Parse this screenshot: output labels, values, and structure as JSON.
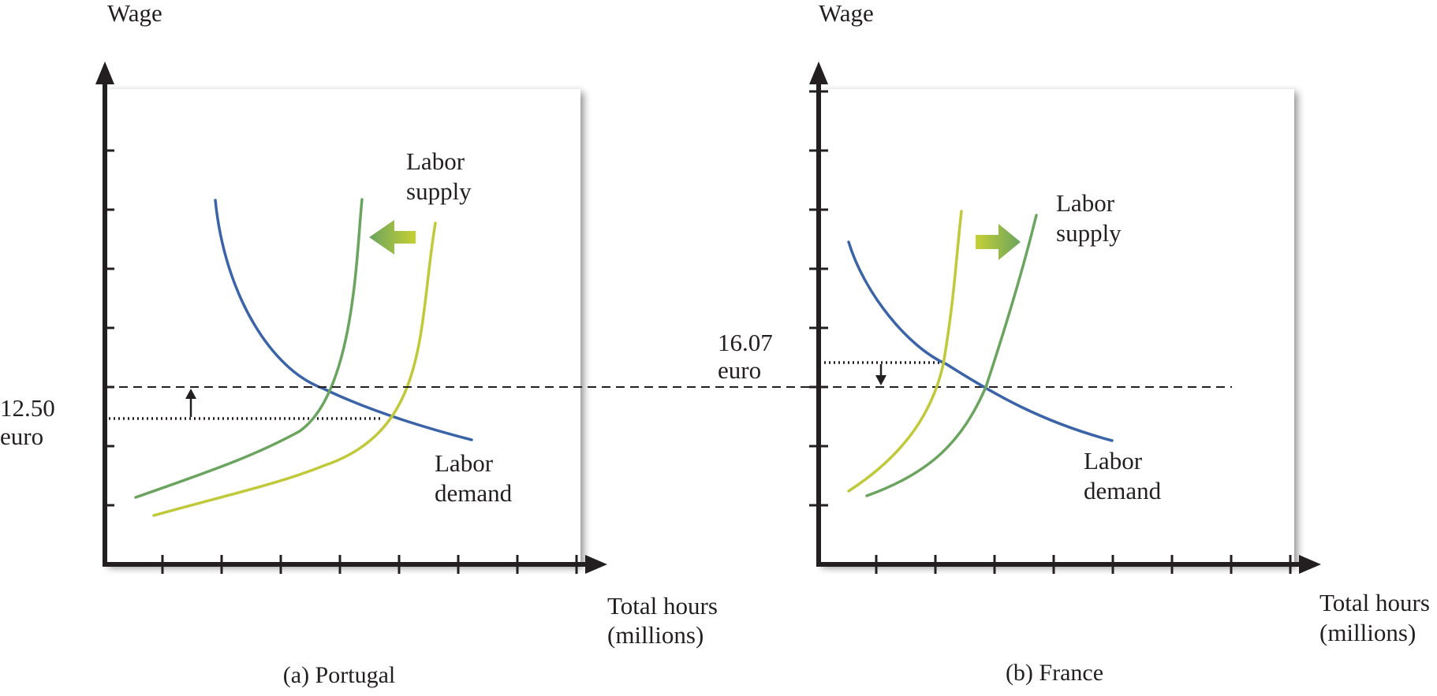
{
  "colors": {
    "axis": "#231f20",
    "labor_demand": "#3b64a8",
    "labor_supply_green": "#6aa45f",
    "labor_supply_yellow": "#bfc93a",
    "shift_arrow_from": "#6aa45f",
    "shift_arrow_to": "#c6d033"
  },
  "panels": [
    {
      "id": "portugal",
      "caption": "(a) Portugal",
      "y_axis_label": "Wage",
      "x_axis_label_line1": "Total hours",
      "x_axis_label_line2": "(millions)",
      "supply_label_line1": "Labor",
      "supply_label_line2": "supply",
      "demand_label_line1": "Labor",
      "demand_label_line2": "demand",
      "wage_label_line1": "12.50",
      "wage_label_line2": "euro",
      "supply_shift_direction": "left",
      "wage_change_direction": "up",
      "curves": [
        {
          "name": "Labor demand",
          "color_key": "labor_demand"
        },
        {
          "name": "Labor supply (new)",
          "color_key": "labor_supply_green"
        },
        {
          "name": "Labor supply (original)",
          "color_key": "labor_supply_yellow"
        }
      ]
    },
    {
      "id": "france",
      "caption": "(b) France",
      "y_axis_label": "Wage",
      "x_axis_label_line1": "Total hours",
      "x_axis_label_line2": "(millions)",
      "supply_label_line1": "Labor",
      "supply_label_line2": "supply",
      "demand_label_line1": "Labor",
      "demand_label_line2": "demand",
      "wage_label_line1": "16.07",
      "wage_label_line2": "euro",
      "supply_shift_direction": "right",
      "wage_change_direction": "down",
      "curves": [
        {
          "name": "Labor demand",
          "color_key": "labor_demand"
        },
        {
          "name": "Labor supply (original)",
          "color_key": "labor_supply_yellow"
        },
        {
          "name": "Labor supply (new)",
          "color_key": "labor_supply_green"
        }
      ]
    }
  ]
}
